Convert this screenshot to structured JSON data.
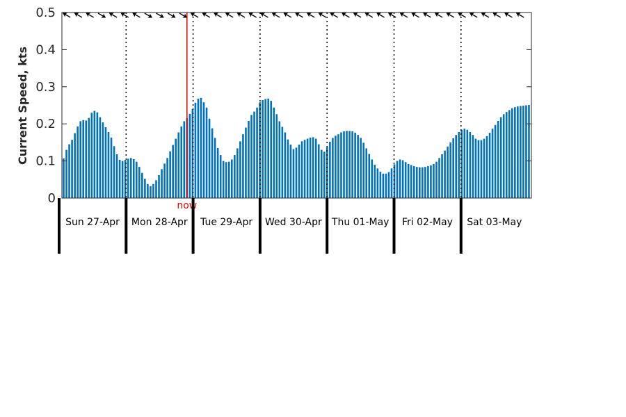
{
  "chart_data": {
    "type": "bar",
    "ylabel": "Current Speed, kts",
    "ylim": [
      0,
      0.5
    ],
    "yticks": [
      0,
      0.1,
      0.2,
      0.3,
      0.4,
      0.5
    ],
    "ytick_labels": [
      "0",
      "0.1",
      "0.2",
      "0.3",
      "0.4",
      "0.5"
    ],
    "x_unit": "hours since Sun 27-Apr 00:00",
    "xlim": [
      0,
      167
    ],
    "day_labels": [
      "Sun 27-Apr",
      "Mon 28-Apr",
      "Tue 29-Apr",
      "Wed 30-Apr",
      "Thu 01-May",
      "Fri 02-May",
      "Sat 03-May"
    ],
    "now_label": "now",
    "now_hour": 44,
    "bar_color": "#0072bd",
    "now_color": "#e00000",
    "values": [
      0.107,
      0.13,
      0.145,
      0.157,
      0.175,
      0.193,
      0.207,
      0.21,
      0.209,
      0.216,
      0.23,
      0.235,
      0.231,
      0.218,
      0.204,
      0.191,
      0.178,
      0.163,
      0.14,
      0.118,
      0.103,
      0.1,
      0.103,
      0.106,
      0.108,
      0.105,
      0.098,
      0.084,
      0.068,
      0.052,
      0.038,
      0.032,
      0.038,
      0.048,
      0.062,
      0.078,
      0.093,
      0.108,
      0.126,
      0.143,
      0.16,
      0.177,
      0.193,
      0.207,
      0.215,
      0.227,
      0.24,
      0.257,
      0.268,
      0.27,
      0.258,
      0.244,
      0.214,
      0.188,
      0.162,
      0.135,
      0.116,
      0.1,
      0.097,
      0.098,
      0.104,
      0.116,
      0.134,
      0.153,
      0.172,
      0.19,
      0.208,
      0.224,
      0.233,
      0.244,
      0.258,
      0.264,
      0.267,
      0.268,
      0.262,
      0.244,
      0.226,
      0.207,
      0.192,
      0.177,
      0.158,
      0.144,
      0.132,
      0.136,
      0.144,
      0.153,
      0.157,
      0.16,
      0.163,
      0.164,
      0.16,
      0.145,
      0.13,
      0.125,
      0.138,
      0.152,
      0.162,
      0.168,
      0.172,
      0.177,
      0.18,
      0.181,
      0.181,
      0.18,
      0.176,
      0.17,
      0.162,
      0.149,
      0.134,
      0.119,
      0.104,
      0.09,
      0.08,
      0.071,
      0.066,
      0.066,
      0.07,
      0.08,
      0.091,
      0.1,
      0.104,
      0.102,
      0.097,
      0.092,
      0.089,
      0.086,
      0.084,
      0.083,
      0.083,
      0.084,
      0.086,
      0.088,
      0.092,
      0.098,
      0.108,
      0.118,
      0.128,
      0.139,
      0.15,
      0.161,
      0.17,
      0.178,
      0.184,
      0.187,
      0.184,
      0.178,
      0.17,
      0.16,
      0.156,
      0.156,
      0.16,
      0.167,
      0.176,
      0.187,
      0.197,
      0.208,
      0.218,
      0.226,
      0.232,
      0.237,
      0.242,
      0.245,
      0.247,
      0.248,
      0.249,
      0.25,
      0.251
    ]
  },
  "direction_arrows": {
    "color": "#000000",
    "headings_deg": [
      300,
      300,
      300,
      120,
      300,
      300,
      300,
      120,
      120,
      120,
      120,
      300,
      300,
      300,
      300,
      300,
      300,
      300,
      300,
      300,
      300,
      300,
      300,
      300,
      300,
      300,
      300,
      300,
      300,
      300,
      300,
      300,
      300,
      300,
      300,
      300,
      300,
      300,
      300,
      300
    ]
  }
}
